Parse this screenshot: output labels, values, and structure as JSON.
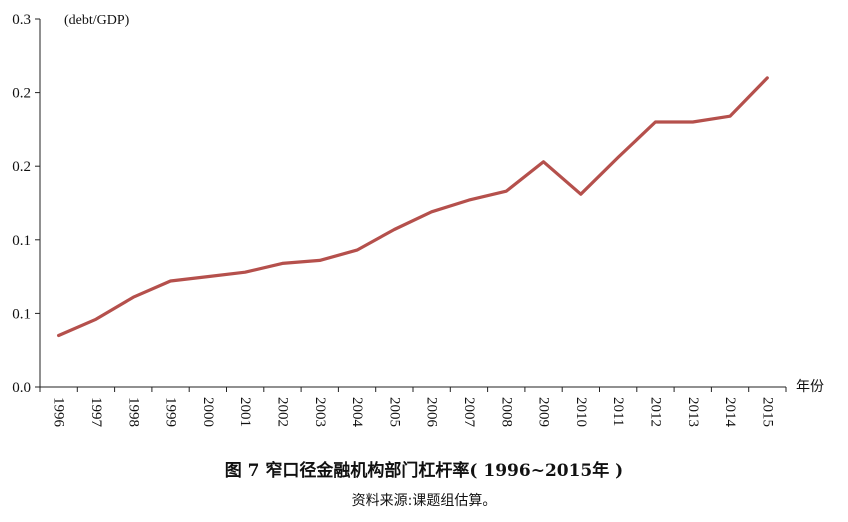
{
  "chart_data": {
    "type": "line",
    "title": "图 7  窄口径金融机构部门杠杆率( 1996~2015年 )",
    "source": "资料来源:课题组估算。",
    "ylabel": "(debt/GDP)",
    "xlabel": "年份",
    "ylim": [
      0,
      0.25
    ],
    "y_ticks": [
      0,
      0.05,
      0.1,
      0.15,
      0.2,
      0.25
    ],
    "y_tick_labels": [
      "0.0",
      "0.1",
      "0.1",
      "0.2",
      "0.2",
      "0.3"
    ],
    "categories": [
      "1996",
      "1997",
      "1998",
      "1999",
      "2000",
      "2001",
      "2002",
      "2003",
      "2004",
      "2005",
      "2006",
      "2007",
      "2008",
      "2009",
      "2010",
      "2011",
      "2012",
      "2013",
      "2014",
      "2015"
    ],
    "series": [
      {
        "name": "窄口径金融机构部门杠杆率",
        "color": "#b5504c",
        "values": [
          0.035,
          0.046,
          0.061,
          0.072,
          0.075,
          0.078,
          0.084,
          0.086,
          0.093,
          0.107,
          0.119,
          0.127,
          0.133,
          0.153,
          0.131,
          0.156,
          0.18,
          0.18,
          0.184,
          0.21
        ]
      }
    ],
    "grid": false
  }
}
